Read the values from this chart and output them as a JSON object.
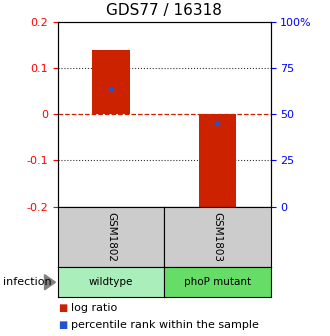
{
  "title": "GDS77 / 16318",
  "samples": [
    "GSM1802",
    "GSM1803"
  ],
  "conditions": [
    "wildtype",
    "phoP mutant"
  ],
  "log_ratios": [
    0.14,
    -0.205
  ],
  "percentile_ranks": [
    0.055,
    -0.018
  ],
  "ylim": [
    -0.2,
    0.2
  ],
  "yticks_left": [
    -0.2,
    -0.1,
    0,
    0.1,
    0.2
  ],
  "yticks_right": [
    0,
    25,
    50,
    75,
    100
  ],
  "bar_color": "#cc2200",
  "blue_color": "#2255cc",
  "zero_line_color": "#cc2200",
  "grid_color": "#333333",
  "sample_box_color": "#cccccc",
  "condition_colors": [
    "#aaeebb",
    "#66dd66"
  ],
  "bar_width": 0.35,
  "title_fontsize": 11,
  "tick_fontsize": 8,
  "legend_fontsize": 8,
  "infection_label": "infection"
}
